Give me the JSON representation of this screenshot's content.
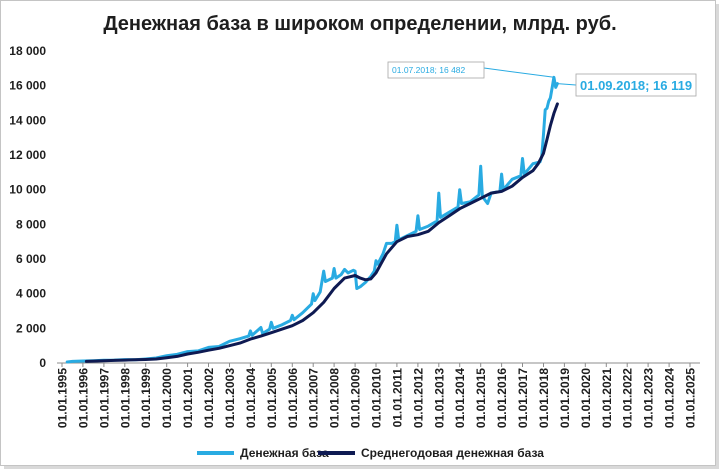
{
  "chart_data": {
    "type": "line",
    "title": "Денежная база в широком определении, млрд. руб.",
    "xlabel": "",
    "ylabel": "",
    "ylim": [
      0,
      18000
    ],
    "y_ticks": [
      0,
      2000,
      4000,
      6000,
      8000,
      10000,
      12000,
      14000,
      16000,
      18000
    ],
    "y_tick_labels": [
      "0",
      "2 000",
      "4 000",
      "6 000",
      "8 000",
      "10 000",
      "12 000",
      "14 000",
      "16 000",
      "18 000"
    ],
    "x_range": [
      "01.01.1995",
      "01.01.2025"
    ],
    "x_tick_labels": [
      "01.01.1995",
      "01.01.1996",
      "01.01.1997",
      "01.01.1998",
      "01.01.1999",
      "01.01.2000",
      "01.01.2001",
      "01.01.2002",
      "01.01.2003",
      "01.01.2004",
      "01.01.2005",
      "01.01.2006",
      "01.01.2007",
      "01.01.2008",
      "01.01.2009",
      "01.01.2010",
      "01.01.2011",
      "01.01.2012",
      "01.01.2013",
      "01.01.2014",
      "01.01.2015",
      "01.01.2016",
      "01.01.2017",
      "01.01.2018",
      "01.01.2019",
      "01.01.2020",
      "01.01.2021",
      "01.01.2022",
      "01.01.2023",
      "01.01.2024",
      "01.01.2025"
    ],
    "grid": false,
    "legend": "bottom",
    "series": [
      {
        "name": "Денежная база",
        "color": "#29abe2",
        "points": [
          [
            "01.04.1995",
            60
          ],
          [
            "01.07.1995",
            90
          ],
          [
            "01.01.1996",
            115
          ],
          [
            "01.07.1996",
            130
          ],
          [
            "01.01.1997",
            155
          ],
          [
            "01.07.1997",
            170
          ],
          [
            "01.01.1998",
            195
          ],
          [
            "01.07.1998",
            185
          ],
          [
            "01.01.1999",
            230
          ],
          [
            "01.07.1999",
            290
          ],
          [
            "01.01.2000",
            420
          ],
          [
            "01.07.2000",
            500
          ],
          [
            "01.01.2001",
            660
          ],
          [
            "01.07.2001",
            700
          ],
          [
            "01.01.2002",
            900
          ],
          [
            "01.07.2002",
            950
          ],
          [
            "01.01.2003",
            1250
          ],
          [
            "01.07.2003",
            1400
          ],
          [
            "01.12.2003",
            1550
          ],
          [
            "01.01.2004",
            1850
          ],
          [
            "01.02.2004",
            1600
          ],
          [
            "01.07.2004",
            2050
          ],
          [
            "01.08.2004",
            1700
          ],
          [
            "01.12.2004",
            1950
          ],
          [
            "01.01.2005",
            2350
          ],
          [
            "01.02.2005",
            2000
          ],
          [
            "01.07.2005",
            2200
          ],
          [
            "01.12.2005",
            2450
          ],
          [
            "01.01.2006",
            2750
          ],
          [
            "01.02.2006",
            2500
          ],
          [
            "01.07.2006",
            2900
          ],
          [
            "01.12.2006",
            3400
          ],
          [
            "01.01.2007",
            4000
          ],
          [
            "01.02.2007",
            3600
          ],
          [
            "01.05.2007",
            4100
          ],
          [
            "01.07.2007",
            5300
          ],
          [
            "01.08.2007",
            4700
          ],
          [
            "01.12.2007",
            4900
          ],
          [
            "01.01.2008",
            5450
          ],
          [
            "01.02.2008",
            4900
          ],
          [
            "01.05.2008",
            5100
          ],
          [
            "01.07.2008",
            5400
          ],
          [
            "01.09.2008",
            5200
          ],
          [
            "01.12.2008",
            5350
          ],
          [
            "01.01.2009",
            5300
          ],
          [
            "01.02.2009",
            4300
          ],
          [
            "01.04.2009",
            4400
          ],
          [
            "01.07.2009",
            4650
          ],
          [
            "01.10.2009",
            5000
          ],
          [
            "01.12.2009",
            5300
          ],
          [
            "01.01.2010",
            5900
          ],
          [
            "01.02.2010",
            5700
          ],
          [
            "01.05.2010",
            6300
          ],
          [
            "01.07.2010",
            6900
          ],
          [
            "01.10.2010",
            6900
          ],
          [
            "01.12.2010",
            7000
          ],
          [
            "01.01.2011",
            7950
          ],
          [
            "01.02.2011",
            7100
          ],
          [
            "01.07.2011",
            7350
          ],
          [
            "01.12.2011",
            7600
          ],
          [
            "01.01.2012",
            8500
          ],
          [
            "01.02.2012",
            7700
          ],
          [
            "01.07.2012",
            7900
          ],
          [
            "01.12.2012",
            8200
          ],
          [
            "01.01.2013",
            9800
          ],
          [
            "01.02.2013",
            8400
          ],
          [
            "01.07.2013",
            8700
          ],
          [
            "01.12.2013",
            9000
          ],
          [
            "01.01.2014",
            10000
          ],
          [
            "01.02.2014",
            9200
          ],
          [
            "01.07.2014",
            9300
          ],
          [
            "01.12.2014",
            9700
          ],
          [
            "01.01.2015",
            11350
          ],
          [
            "01.02.2015",
            9600
          ],
          [
            "01.05.2015",
            9200
          ],
          [
            "01.07.2015",
            9800
          ],
          [
            "01.12.2015",
            9900
          ],
          [
            "01.01.2016",
            10900
          ],
          [
            "01.02.2016",
            10000
          ],
          [
            "01.07.2016",
            10600
          ],
          [
            "01.12.2016",
            10800
          ],
          [
            "01.01.2017",
            11800
          ],
          [
            "01.02.2017",
            10900
          ],
          [
            "01.07.2017",
            11500
          ],
          [
            "01.11.2017",
            11600
          ],
          [
            "01.12.2017",
            11900
          ],
          [
            "01.01.2018",
            13200
          ],
          [
            "01.02.2018",
            14600
          ],
          [
            "01.03.2018",
            14700
          ],
          [
            "01.04.2018",
            15100
          ],
          [
            "01.05.2018",
            15300
          ],
          [
            "01.06.2018",
            15900
          ],
          [
            "01.07.2018",
            16482
          ],
          [
            "01.08.2018",
            15900
          ],
          [
            "01.09.2018",
            16119
          ]
        ]
      },
      {
        "name": "Среднегодовая денежная база",
        "color": "#0e1a52",
        "points": [
          [
            "01.03.1996",
            95
          ],
          [
            "01.07.1996",
            110
          ],
          [
            "01.01.1997",
            130
          ],
          [
            "01.07.1997",
            150
          ],
          [
            "01.01.1998",
            170
          ],
          [
            "01.07.1998",
            185
          ],
          [
            "01.01.1999",
            200
          ],
          [
            "01.07.1999",
            230
          ],
          [
            "01.01.2000",
            300
          ],
          [
            "01.07.2000",
            380
          ],
          [
            "01.01.2001",
            520
          ],
          [
            "01.07.2001",
            620
          ],
          [
            "01.01.2002",
            740
          ],
          [
            "01.07.2002",
            850
          ],
          [
            "01.01.2003",
            1000
          ],
          [
            "01.07.2003",
            1150
          ],
          [
            "01.01.2004",
            1380
          ],
          [
            "01.07.2004",
            1550
          ],
          [
            "01.01.2005",
            1750
          ],
          [
            "01.07.2005",
            1950
          ],
          [
            "01.01.2006",
            2150
          ],
          [
            "01.07.2006",
            2450
          ],
          [
            "01.01.2007",
            2900
          ],
          [
            "01.07.2007",
            3500
          ],
          [
            "01.01.2008",
            4300
          ],
          [
            "01.07.2008",
            4900
          ],
          [
            "01.01.2009",
            5050
          ],
          [
            "01.04.2009",
            4900
          ],
          [
            "01.07.2009",
            4800
          ],
          [
            "01.10.2009",
            4850
          ],
          [
            "01.01.2010",
            5200
          ],
          [
            "01.07.2010",
            6300
          ],
          [
            "01.01.2011",
            7000
          ],
          [
            "01.07.2011",
            7300
          ],
          [
            "01.01.2012",
            7400
          ],
          [
            "01.07.2012",
            7600
          ],
          [
            "01.01.2013",
            8100
          ],
          [
            "01.07.2013",
            8500
          ],
          [
            "01.01.2014",
            8900
          ],
          [
            "01.07.2014",
            9200
          ],
          [
            "01.01.2015",
            9500
          ],
          [
            "01.07.2015",
            9800
          ],
          [
            "01.01.2016",
            9900
          ],
          [
            "01.07.2016",
            10200
          ],
          [
            "01.01.2017",
            10700
          ],
          [
            "01.07.2017",
            11100
          ],
          [
            "01.10.2017",
            11500
          ],
          [
            "01.01.2018",
            12100
          ],
          [
            "01.03.2018",
            12900
          ],
          [
            "01.05.2018",
            13700
          ],
          [
            "01.07.2018",
            14400
          ],
          [
            "01.09.2018",
            14950
          ]
        ]
      }
    ],
    "annotations": [
      {
        "x": "01.07.2018",
        "y": 16482,
        "label": "01.07.2018; 16 482"
      },
      {
        "x": "01.09.2018",
        "y": 16119,
        "label": "01.09.2018; 16 119"
      }
    ]
  }
}
